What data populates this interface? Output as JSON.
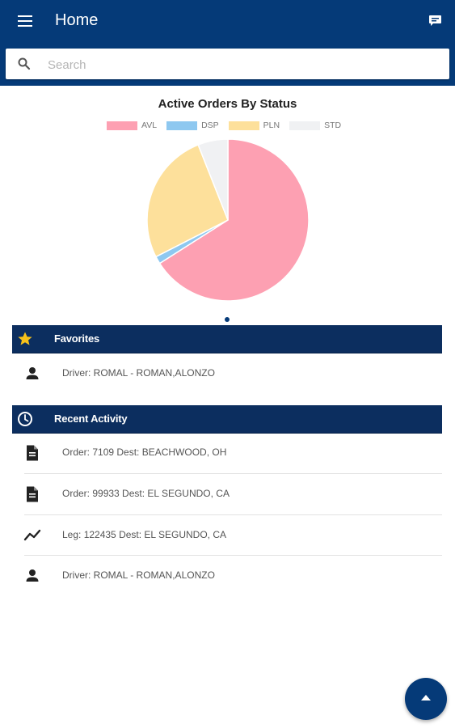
{
  "header": {
    "title": "Home",
    "menu_icon": "menu-icon",
    "chat_icon": "chat-icon"
  },
  "search": {
    "placeholder": "Search",
    "value": ""
  },
  "chart_data": {
    "type": "pie",
    "title": "Active Orders By Status",
    "legend_position": "top",
    "categories": [
      "AVL",
      "DSP",
      "PLN",
      "STD"
    ],
    "values": [
      66,
      1.5,
      26.5,
      6
    ],
    "colors": [
      "#fda0b2",
      "#8ec8f0",
      "#fde09b",
      "#f0f1f3"
    ]
  },
  "favorites": {
    "title": "Favorites",
    "icon": "star-icon",
    "items": [
      {
        "icon": "person-icon",
        "text": "Driver: ROMAL - ROMAN,ALONZO"
      }
    ]
  },
  "recent": {
    "title": "Recent Activity",
    "icon": "clock-icon",
    "items": [
      {
        "icon": "document-icon",
        "text": "Order: 7109 Dest: BEACHWOOD, OH"
      },
      {
        "icon": "document-icon",
        "text": "Order: 99933 Dest: EL SEGUNDO, CA"
      },
      {
        "icon": "leg-route-icon",
        "text": "Leg: 122435 Dest: EL SEGUNDO, CA"
      },
      {
        "icon": "person-icon",
        "text": "Driver: ROMAL - ROMAN,ALONZO"
      }
    ]
  },
  "fab": {
    "icon": "arrow-up-icon"
  },
  "colors": {
    "primary": "#053a78",
    "section_header": "#0c2e5f",
    "star": "#f7c21b"
  }
}
